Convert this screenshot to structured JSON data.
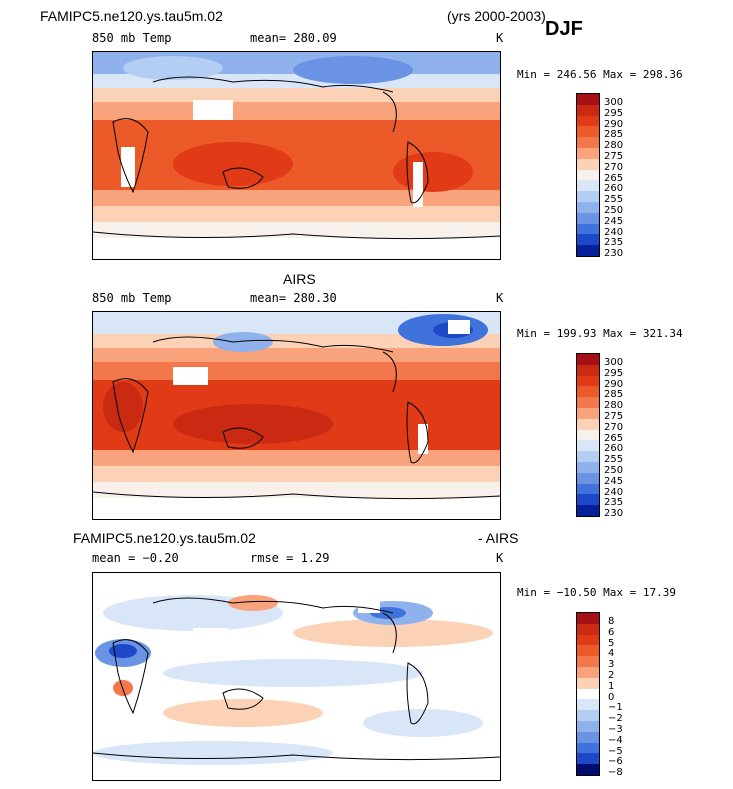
{
  "header": {
    "model": "FAMIPC5.ne120.ys.tau5m.02",
    "years": "(yrs 2000-2003)",
    "season": "DJF"
  },
  "panels": [
    {
      "title": "",
      "variable": "850 mb Temp",
      "stat_text": "mean=  280.09",
      "stat2_text": "",
      "units": "K",
      "minmax": "Min = 246.56 Max = 298.36",
      "colorbar": [
        "300",
        "295",
        "290",
        "285",
        "280",
        "275",
        "270",
        "265",
        "260",
        "255",
        "250",
        "245",
        "240",
        "235",
        "230"
      ]
    },
    {
      "title": "AIRS",
      "variable": "850 mb Temp",
      "stat_text": "mean=  280.30",
      "stat2_text": "",
      "units": "K",
      "minmax": "Min = 199.93 Max = 321.34",
      "colorbar": [
        "300",
        "295",
        "290",
        "285",
        "280",
        "275",
        "270",
        "265",
        "260",
        "255",
        "250",
        "245",
        "240",
        "235",
        "230"
      ]
    },
    {
      "title": "FAMIPC5.ne120.ys.tau5m.02",
      "title_right": "- AIRS",
      "variable": "mean =   −0.20",
      "stat_text": "rmse =    1.29",
      "stat2_text": "",
      "units": "K",
      "minmax": "Min = −10.50 Max =  17.39",
      "colorbar": [
        "8",
        "6",
        "5",
        "4",
        "3",
        "2",
        "1",
        "0",
        "−1",
        "−2",
        "−3",
        "−4",
        "−5",
        "−6",
        "−8"
      ]
    }
  ],
  "colors": {
    "temp_scale": [
      "#a50f15",
      "#cb2a12",
      "#e03a16",
      "#ec5a2a",
      "#f2784c",
      "#f8a37c",
      "#fcd2b6",
      "#f8f0ea",
      "#d8e6f8",
      "#b4cdf3",
      "#8fb2ec",
      "#6a93e4",
      "#4072dc",
      "#1d48c8",
      "#06209a",
      "#000c6e"
    ],
    "diff_scale": [
      "#a50f15",
      "#cb2a12",
      "#e03a16",
      "#ec5a2a",
      "#f2784c",
      "#f8a37c",
      "#fcd2b6",
      "#ffffff",
      "#d8e6f8",
      "#b4cdf3",
      "#8fb2ec",
      "#6a93e4",
      "#4072dc",
      "#1d48c8",
      "#000c6e"
    ]
  }
}
